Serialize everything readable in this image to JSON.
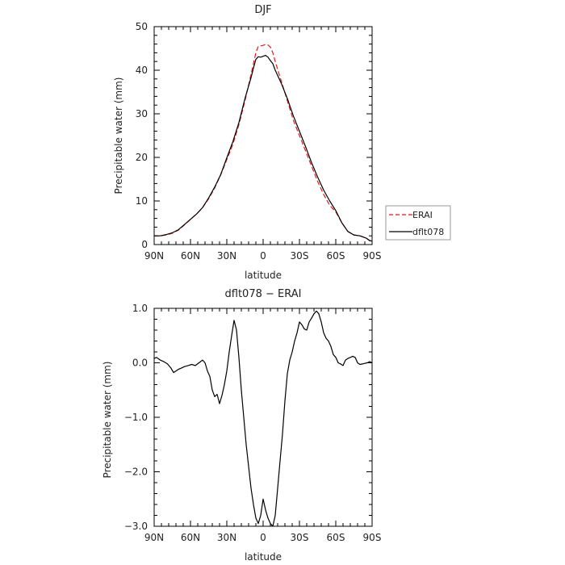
{
  "chart_data": [
    {
      "type": "line",
      "title": "DJF",
      "xlabel": "latitude",
      "ylabel": "Precipitable water  (mm)",
      "xlim": [
        90,
        -90
      ],
      "ylim": [
        0,
        50
      ],
      "x_ticks": [
        {
          "value": 90,
          "label": "90N"
        },
        {
          "value": 60,
          "label": "60N"
        },
        {
          "value": 30,
          "label": "30N"
        },
        {
          "value": 0,
          "label": "0"
        },
        {
          "value": -30,
          "label": "30S"
        },
        {
          "value": -60,
          "label": "60S"
        },
        {
          "value": -90,
          "label": "90S"
        }
      ],
      "y_ticks": [
        {
          "value": 0,
          "label": "0"
        },
        {
          "value": 10,
          "label": "10"
        },
        {
          "value": 20,
          "label": "20"
        },
        {
          "value": 30,
          "label": "30"
        },
        {
          "value": 40,
          "label": "40"
        },
        {
          "value": 50,
          "label": "50"
        }
      ],
      "legend_position": "right",
      "series": [
        {
          "name": "ERAI",
          "color": "#e41a1c",
          "dash": "dashed",
          "x": [
            90,
            85,
            80,
            75,
            70,
            65,
            60,
            55,
            50,
            45,
            40,
            35,
            30,
            25,
            20,
            15,
            10,
            8,
            6,
            4,
            2,
            0,
            -2,
            -4,
            -6,
            -8,
            -10,
            -15,
            -20,
            -25,
            -30,
            -35,
            -40,
            -45,
            -50,
            -55,
            -60,
            -65,
            -70,
            -75,
            -80,
            -85,
            -88,
            -90
          ],
          "values": [
            2.0,
            2.0,
            2.2,
            2.6,
            3.3,
            4.5,
            5.8,
            7.0,
            8.5,
            10.5,
            13.0,
            16.0,
            19.5,
            23.0,
            27.5,
            33.0,
            39.0,
            41.5,
            44.0,
            45.5,
            45.6,
            45.7,
            45.9,
            45.8,
            45.3,
            44.0,
            42.0,
            37.5,
            33.0,
            28.5,
            25.0,
            21.5,
            18.0,
            14.5,
            11.5,
            9.0,
            7.5,
            5.0,
            3.0,
            2.2,
            2.0,
            1.5,
            0.9,
            0.8
          ]
        },
        {
          "name": "dflt078",
          "color": "#000000",
          "dash": "solid",
          "x": [
            90,
            85,
            80,
            75,
            70,
            65,
            60,
            55,
            50,
            45,
            40,
            35,
            30,
            25,
            20,
            15,
            10,
            8,
            6,
            4,
            2,
            0,
            -2,
            -4,
            -6,
            -8,
            -10,
            -15,
            -20,
            -25,
            -30,
            -35,
            -40,
            -45,
            -50,
            -55,
            -60,
            -65,
            -70,
            -75,
            -80,
            -85,
            -88,
            -90
          ],
          "values": [
            2.0,
            2.0,
            2.3,
            2.7,
            3.4,
            4.6,
            5.8,
            7.0,
            8.5,
            10.7,
            13.2,
            16.1,
            19.9,
            23.6,
            28.0,
            33.5,
            38.3,
            40.5,
            42.5,
            43.1,
            43.0,
            43.2,
            43.4,
            43.0,
            42.2,
            41.5,
            40.0,
            37.0,
            33.5,
            29.5,
            26.0,
            22.5,
            18.8,
            15.5,
            12.5,
            10.0,
            7.8,
            5.0,
            3.0,
            2.2,
            2.0,
            1.5,
            0.9,
            0.8
          ]
        }
      ]
    },
    {
      "type": "line",
      "title": "dflt078 − ERAI",
      "xlabel": "latitude",
      "ylabel": "Precipitable water  (mm)",
      "xlim": [
        90,
        -90
      ],
      "ylim": [
        -3.0,
        1.0
      ],
      "x_ticks": [
        {
          "value": 90,
          "label": "90N"
        },
        {
          "value": 60,
          "label": "60N"
        },
        {
          "value": 30,
          "label": "30N"
        },
        {
          "value": 0,
          "label": "0"
        },
        {
          "value": -30,
          "label": "30S"
        },
        {
          "value": -60,
          "label": "60S"
        },
        {
          "value": -90,
          "label": "90S"
        }
      ],
      "y_ticks": [
        {
          "value": 1.0,
          "label": "1.0"
        },
        {
          "value": 0.0,
          "label": "0.0"
        },
        {
          "value": -1.0,
          "label": "−1.0"
        },
        {
          "value": -2.0,
          "label": "−2.0"
        },
        {
          "value": -3.0,
          "label": "−3.0"
        }
      ],
      "series": [
        {
          "name": "",
          "color": "#000000",
          "dash": "solid",
          "x": [
            90,
            88,
            85,
            82,
            79,
            76,
            74,
            72,
            70,
            68,
            65,
            62,
            59,
            56,
            53,
            50,
            48,
            46,
            44,
            42,
            40,
            38,
            36,
            34,
            32,
            30,
            28,
            26,
            24,
            22,
            20,
            18,
            16,
            14,
            12,
            10,
            8,
            6,
            4,
            2,
            0,
            -2,
            -4,
            -6,
            -8,
            -10,
            -12,
            -14,
            -16,
            -18,
            -20,
            -22,
            -24,
            -26,
            -28,
            -30,
            -32,
            -34,
            -36,
            -38,
            -40,
            -42,
            -44,
            -46,
            -48,
            -50,
            -52,
            -54,
            -56,
            -58,
            -60,
            -62,
            -64,
            -66,
            -68,
            -70,
            -72,
            -74,
            -76,
            -78,
            -80,
            -82,
            -84,
            -86,
            -88,
            -90
          ],
          "values": [
            0.08,
            0.1,
            0.05,
            0.02,
            -0.02,
            -0.1,
            -0.18,
            -0.15,
            -0.12,
            -0.1,
            -0.07,
            -0.05,
            -0.03,
            -0.05,
            0.0,
            0.05,
            0.0,
            -0.15,
            -0.25,
            -0.5,
            -0.62,
            -0.58,
            -0.75,
            -0.6,
            -0.4,
            -0.15,
            0.2,
            0.5,
            0.78,
            0.6,
            0.1,
            -0.5,
            -1.0,
            -1.5,
            -1.9,
            -2.3,
            -2.6,
            -2.85,
            -2.95,
            -2.8,
            -2.5,
            -2.7,
            -2.85,
            -2.95,
            -3.0,
            -2.8,
            -2.3,
            -1.8,
            -1.3,
            -0.7,
            -0.2,
            0.05,
            0.2,
            0.4,
            0.55,
            0.75,
            0.7,
            0.62,
            0.6,
            0.75,
            0.82,
            0.9,
            0.95,
            0.9,
            0.75,
            0.55,
            0.45,
            0.4,
            0.3,
            0.15,
            0.1,
            0.0,
            -0.02,
            -0.05,
            0.05,
            0.08,
            0.1,
            0.12,
            0.1,
            0.0,
            -0.03,
            -0.02,
            -0.01,
            0.0,
            0.02,
            0.0
          ]
        }
      ]
    }
  ]
}
